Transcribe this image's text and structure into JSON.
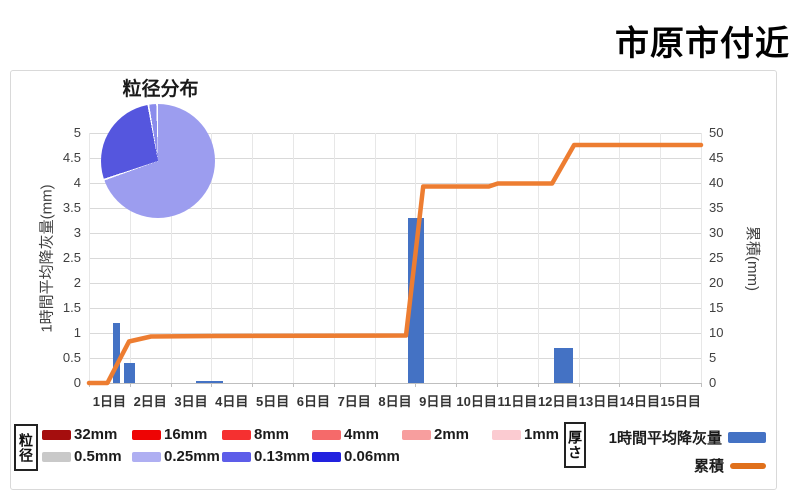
{
  "title": "市原市付近",
  "chart_data": [
    {
      "type": "combo-bar-line",
      "categories": [
        "1日目",
        "2日目",
        "3日目",
        "4日目",
        "5日目",
        "6日目",
        "7日目",
        "8日目",
        "9日目",
        "10日目",
        "11日目",
        "12日目",
        "13日目",
        "14日目",
        "15日目"
      ],
      "left_axis": {
        "title": "1時間平均降灰量(mm)",
        "min": 0,
        "max": 5,
        "step": 0.5,
        "ticks": [
          "0",
          "0.5",
          "1",
          "1.5",
          "2",
          "2.5",
          "3",
          "3.5",
          "4",
          "4.5",
          "5"
        ]
      },
      "right_axis": {
        "title": "累積(mm)",
        "min": 0,
        "max": 50,
        "step": 5,
        "ticks": [
          "0",
          "5",
          "10",
          "15",
          "20",
          "25",
          "30",
          "35",
          "40",
          "45",
          "50"
        ]
      },
      "grid": true,
      "bar_series": {
        "name": "1時間平均降灰量",
        "unit": "mm",
        "axis": "left",
        "color": "#4472c4",
        "points": [
          {
            "day_pos": 0.59,
            "width_days": 0.17,
            "value": 1.2
          },
          {
            "day_pos": 0.85,
            "width_days": 0.27,
            "value": 0.4
          },
          {
            "day_pos": 2.62,
            "width_days": 0.66,
            "value": 0.04
          },
          {
            "day_pos": 7.82,
            "width_days": 0.39,
            "value": 3.3
          },
          {
            "day_pos": 11.4,
            "width_days": 0.47,
            "value": 0.7
          }
        ]
      },
      "line_series": {
        "name": "累積",
        "unit": "mm",
        "axis": "right",
        "color": "#ed7d31",
        "points": [
          [
            0,
            0
          ],
          [
            0.45,
            0
          ],
          [
            0.98,
            8.3
          ],
          [
            1.52,
            9.3
          ],
          [
            3.1,
            9.4
          ],
          [
            7.77,
            9.5
          ],
          [
            8.19,
            39.3
          ],
          [
            9.8,
            39.3
          ],
          [
            10.02,
            39.9
          ],
          [
            11.35,
            39.9
          ],
          [
            11.89,
            47.6
          ],
          [
            15,
            47.6
          ]
        ]
      }
    },
    {
      "type": "pie",
      "title": "粒径分布",
      "slices": [
        {
          "label": "0.25mm",
          "pct": 70.5,
          "color": "#9c9def"
        },
        {
          "label": "0.13mm",
          "pct": 27.5,
          "color": "#5556de"
        },
        {
          "label": "0.06mm",
          "pct": 2.0,
          "color": "#8b8cec"
        }
      ]
    }
  ],
  "legend": {
    "size_box_label": "粒径",
    "sizes_row1": [
      {
        "label": "32mm",
        "color": "#a50e0e"
      },
      {
        "label": "16mm",
        "color": "#ee0404"
      },
      {
        "label": "8mm",
        "color": "#f53030"
      },
      {
        "label": "4mm",
        "color": "#f56a6a"
      },
      {
        "label": "2mm",
        "color": "#f79e9e"
      },
      {
        "label": "1mm",
        "color": "#fbcbd1"
      }
    ],
    "sizes_row2": [
      {
        "label": "0.5mm",
        "color": "#c9c9c9"
      },
      {
        "label": "0.25mm",
        "color": "#afaff2"
      },
      {
        "label": "0.13mm",
        "color": "#5d5de9"
      },
      {
        "label": "0.06mm",
        "color": "#2222df"
      }
    ],
    "thickness_box_label": "厚さ",
    "bar_label": "1時間平均降灰量",
    "line_label": "累積",
    "bar_color": "#4472c4",
    "line_color": "#e0701b"
  }
}
